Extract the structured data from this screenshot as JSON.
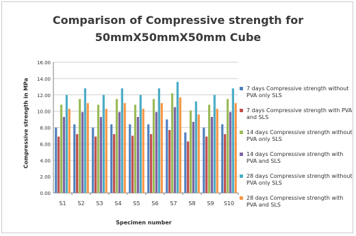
{
  "chart_data": {
    "type": "bar",
    "title_lines": [
      "Comparison of Compressive strength for",
      "50mmX50mmX50mm Cube"
    ],
    "xlabel": "Specimen number",
    "ylabel": "Compressive strength in MPa",
    "ylim": [
      0,
      16
    ],
    "yticks": [
      "0.00",
      "2.00",
      "4.00",
      "6.00",
      "8.00",
      "10.00",
      "12.00",
      "14.00",
      "16.00"
    ],
    "grid": true,
    "legend_position": "right",
    "categories": [
      "S1",
      "S2",
      "S3",
      "S4",
      "S5",
      "S6",
      "S7",
      "S8",
      "S9",
      "S10"
    ],
    "series": [
      {
        "name": "7 days Compressive strength without PVA only SLS",
        "color": "#4f81bd",
        "values": [
          8.0,
          8.4,
          8.0,
          8.4,
          8.4,
          8.4,
          9.0,
          7.4,
          8.0,
          8.4
        ]
      },
      {
        "name": "7 days Compressive strength with PVA and SLS",
        "color": "#c0504d",
        "values": [
          6.9,
          7.2,
          6.9,
          7.2,
          7.0,
          7.2,
          7.7,
          6.3,
          6.9,
          7.2
        ]
      },
      {
        "name": "14 days Compressive strength without PVA only SLS",
        "color": "#9bbb59",
        "values": [
          10.8,
          11.5,
          10.8,
          11.5,
          10.8,
          11.5,
          12.2,
          10.1,
          10.8,
          11.5
        ]
      },
      {
        "name": "14 days Compressive strength with PVA and SLS",
        "color": "#8064a2",
        "values": [
          9.3,
          9.9,
          9.3,
          9.9,
          9.3,
          9.9,
          10.5,
          8.7,
          9.3,
          9.9
        ]
      },
      {
        "name": "28 days Compressive strength without PVA only SLS",
        "color": "#4bacc6",
        "values": [
          12.0,
          12.8,
          12.0,
          12.8,
          12.0,
          12.8,
          13.6,
          11.2,
          12.0,
          12.8
        ]
      },
      {
        "name": "28 days Compressive strength with PVA and SLS",
        "color": "#f79646",
        "values": [
          10.3,
          11.0,
          10.3,
          11.0,
          10.3,
          11.0,
          11.7,
          9.6,
          10.3,
          11.0
        ]
      }
    ]
  },
  "gridline_color": "#bfbfbf",
  "axis_color": "#7f7f7f"
}
